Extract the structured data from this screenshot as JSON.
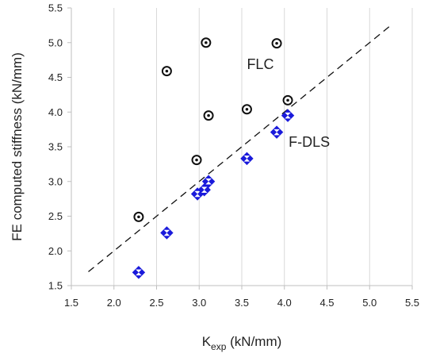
{
  "chart_data": {
    "type": "scatter",
    "title": "",
    "xlabel": {
      "base": "K",
      "subscript": "exp",
      "suffix": " (kN/mm)"
    },
    "ylabel": "FE computed stiffness (kN/mm)",
    "xlim": [
      1.5,
      5.5
    ],
    "ylim": [
      1.5,
      5.5
    ],
    "x_ticks": [
      "1.5",
      "2.0",
      "2.5",
      "3.0",
      "3.5",
      "4.0",
      "4.5",
      "5.0",
      "5.5"
    ],
    "y_ticks": [
      "1.5",
      "2.0",
      "2.5",
      "3.0",
      "3.5",
      "4.0",
      "4.5",
      "5.0",
      "5.5"
    ],
    "grid": "vertical",
    "legend": "none",
    "series": [
      {
        "marker": "circle-dot",
        "color": "#111111",
        "points": [
          [
            2.29,
            2.49
          ],
          [
            2.62,
            4.59
          ],
          [
            2.97,
            3.31
          ],
          [
            3.08,
            5.0
          ],
          [
            3.11,
            3.95
          ],
          [
            3.56,
            4.04
          ],
          [
            3.91,
            4.99
          ],
          [
            4.04,
            4.17
          ]
        ]
      },
      {
        "marker": "diamond",
        "color": "#1a1adb",
        "points": [
          [
            2.29,
            1.69
          ],
          [
            2.62,
            2.26
          ],
          [
            2.98,
            2.82
          ],
          [
            3.06,
            2.88
          ],
          [
            3.11,
            3.0
          ],
          [
            3.56,
            3.33
          ],
          [
            3.91,
            3.71
          ],
          [
            4.04,
            3.95
          ]
        ]
      }
    ],
    "reference_line": {
      "style": "dashed",
      "color": "#111111",
      "from": [
        1.7,
        1.7
      ],
      "to": [
        5.27,
        5.27
      ]
    },
    "annotations": [
      {
        "text": "FLC",
        "x": 3.56,
        "y": 4.62
      },
      {
        "text": "F-DLS",
        "x": 4.05,
        "y": 3.5
      }
    ]
  }
}
